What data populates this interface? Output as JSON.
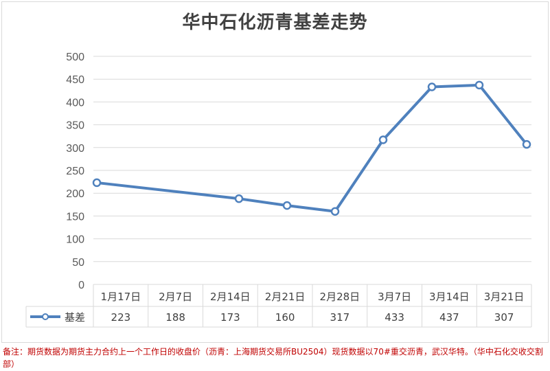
{
  "chart_data": {
    "type": "line",
    "title": "华中石化沥青基差走势",
    "categories": [
      "1月17日",
      "2月7日",
      "2月14日",
      "2月21日",
      "2月28日",
      "3月7日",
      "3月14日",
      "3月21日"
    ],
    "series": [
      {
        "name": "基差",
        "values": [
          223,
          188,
          173,
          160,
          317,
          433,
          437,
          307
        ]
      }
    ],
    "point_x_positions_note": "",
    "yticks": [
      0,
      50,
      100,
      150,
      200,
      250,
      300,
      350,
      400,
      450,
      500
    ],
    "ylim": [
      0,
      500
    ],
    "grid": true,
    "legend": "data-table",
    "colors": {
      "line": "#4f81bd",
      "grid": "#d9d9d9",
      "marker_fill": "#ffffff"
    }
  },
  "footnote": "备注：期货数据为期货主力合约上一个工作日的收盘价（沥青：上海期货交易所BU2504）现货数据以70#重交沥青，武汉华特。（华中石化交收交割部）"
}
